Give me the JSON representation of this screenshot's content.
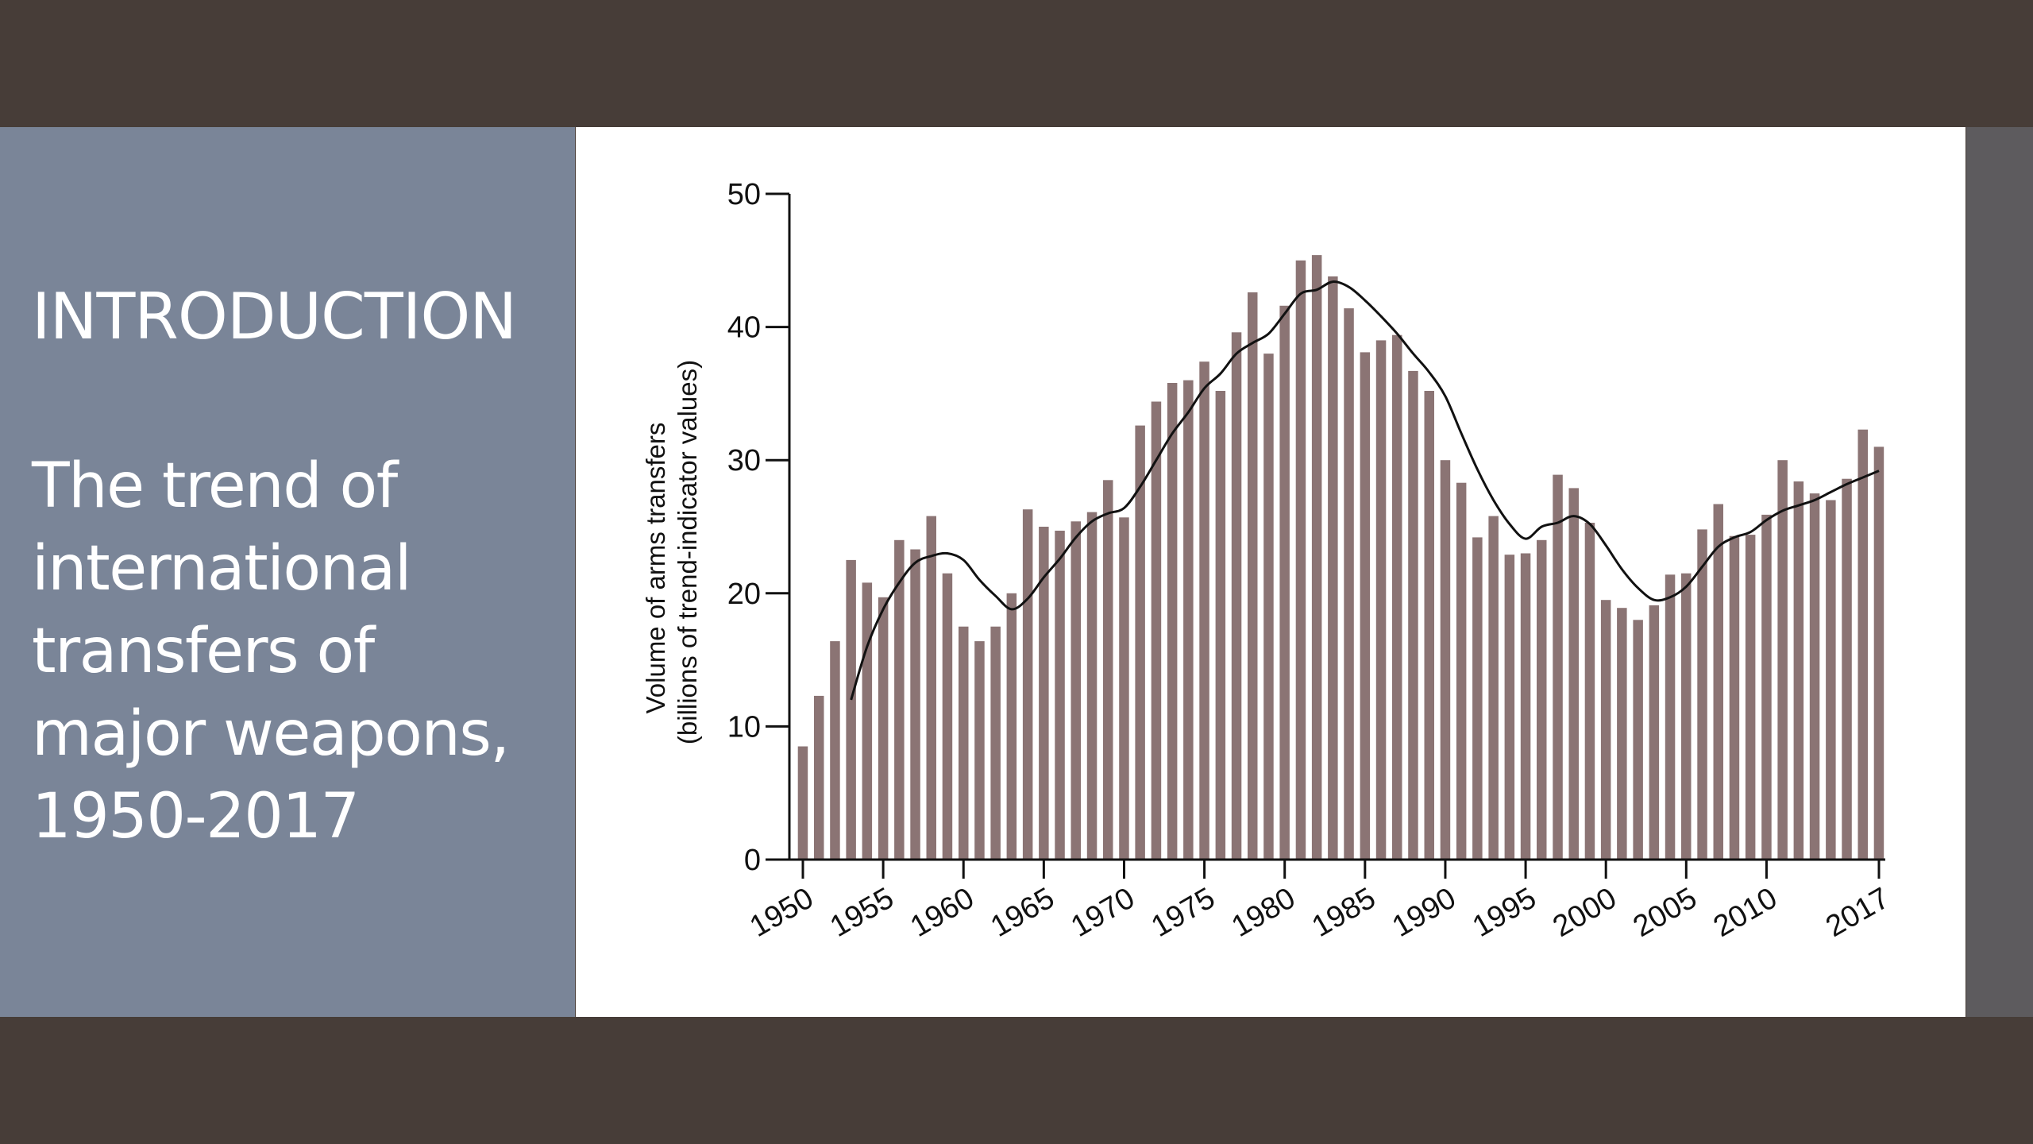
{
  "slide": {
    "heading": "INTRODUCTION",
    "subtitle_lines": [
      "The trend of",
      "international",
      "transfers of",
      "major weapons,",
      "1950-2017"
    ]
  },
  "colors": {
    "band": "#473d38",
    "left_panel": "#7a8598",
    "chart_background": "#ffffff",
    "bar": "#8b7474",
    "trend_line": "#111111"
  },
  "chart_data": {
    "type": "bar",
    "title": "",
    "xlabel": "",
    "ylabel_lines": [
      "Volume of arms transfers",
      "(billions of trend-indicator values)"
    ],
    "ylim": [
      0,
      50
    ],
    "y_ticks": [
      0,
      10,
      20,
      30,
      40,
      50
    ],
    "x_ticks": [
      1950,
      1955,
      1960,
      1965,
      1970,
      1975,
      1980,
      1985,
      1990,
      1995,
      2000,
      2005,
      2010,
      2017
    ],
    "grid": false,
    "categories": [
      1950,
      1951,
      1952,
      1953,
      1954,
      1955,
      1956,
      1957,
      1958,
      1959,
      1960,
      1961,
      1962,
      1963,
      1964,
      1965,
      1966,
      1967,
      1968,
      1969,
      1970,
      1971,
      1972,
      1973,
      1974,
      1975,
      1976,
      1977,
      1978,
      1979,
      1980,
      1981,
      1982,
      1983,
      1984,
      1985,
      1986,
      1987,
      1988,
      1989,
      1990,
      1991,
      1992,
      1993,
      1994,
      1995,
      1996,
      1997,
      1998,
      1999,
      2000,
      2001,
      2002,
      2003,
      2004,
      2005,
      2006,
      2007,
      2008,
      2009,
      2010,
      2011,
      2012,
      2013,
      2014,
      2015,
      2016,
      2017
    ],
    "series": [
      {
        "type": "bar",
        "values": [
          8.5,
          12.3,
          16.4,
          22.5,
          20.8,
          19.7,
          24.0,
          23.3,
          25.8,
          21.5,
          17.5,
          16.4,
          17.5,
          20.0,
          26.3,
          25.0,
          24.7,
          25.4,
          26.1,
          28.5,
          25.7,
          32.6,
          34.4,
          35.8,
          36.0,
          37.4,
          35.2,
          39.6,
          42.6,
          38.0,
          41.6,
          45.0,
          45.4,
          43.8,
          41.4,
          38.1,
          39.0,
          39.4,
          36.7,
          35.2,
          30.0,
          28.3,
          24.2,
          25.8,
          22.9,
          23.0,
          24.0,
          28.9,
          27.9,
          25.3,
          19.5,
          18.9,
          18.0,
          19.1,
          21.4,
          21.5,
          24.8,
          26.7,
          24.3,
          24.4,
          25.9,
          30.0,
          28.4,
          27.5,
          27.0,
          28.6,
          32.3,
          31.0
        ]
      },
      {
        "type": "line",
        "x": [
          1953,
          1954,
          1955,
          1956,
          1957,
          1958,
          1959,
          1960,
          1961,
          1962,
          1963,
          1964,
          1965,
          1966,
          1967,
          1968,
          1969,
          1970,
          1971,
          1972,
          1973,
          1974,
          1975,
          1976,
          1977,
          1978,
          1979,
          1980,
          1981,
          1982,
          1983,
          1984,
          1985,
          1986,
          1987,
          1988,
          1989,
          1990,
          1991,
          1992,
          1993,
          1994,
          1995,
          1996,
          1997,
          1998,
          1999,
          2000,
          2001,
          2002,
          2003,
          2004,
          2005,
          2006,
          2007,
          2008,
          2009,
          2010,
          2011,
          2012,
          2013,
          2014,
          2015,
          2016,
          2017
        ],
        "values": [
          12.0,
          16.0,
          18.8,
          20.8,
          22.3,
          22.8,
          23.0,
          22.5,
          21.0,
          19.8,
          18.8,
          19.6,
          21.2,
          22.6,
          24.2,
          25.4,
          26.0,
          26.4,
          28.0,
          30.0,
          32.0,
          33.6,
          35.4,
          36.5,
          38.0,
          38.8,
          39.5,
          41.0,
          42.5,
          42.8,
          43.4,
          43.0,
          42.0,
          40.8,
          39.5,
          38.0,
          36.6,
          34.8,
          32.0,
          29.3,
          27.0,
          25.2,
          24.1,
          25.0,
          25.3,
          25.8,
          25.2,
          23.6,
          21.8,
          20.4,
          19.5,
          19.7,
          20.5,
          22.0,
          23.5,
          24.2,
          24.6,
          25.5,
          26.2,
          26.6,
          27.0,
          27.6,
          28.2,
          28.7,
          29.2
        ]
      }
    ]
  }
}
